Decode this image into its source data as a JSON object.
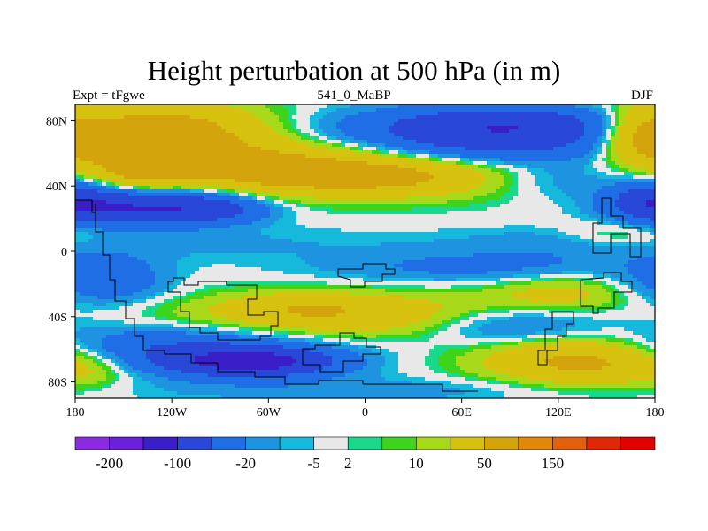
{
  "chart_data": {
    "type": "heatmap",
    "title": "Height perturbation at 500 hPa (in m)",
    "left_label": "Expt = tFgwe",
    "center_label": "541_0_MaBP",
    "right_label": "DJF",
    "x_ticks": [
      {
        "value": -180,
        "label": "180"
      },
      {
        "value": -120,
        "label": "120W"
      },
      {
        "value": -60,
        "label": "60W"
      },
      {
        "value": 0,
        "label": "0"
      },
      {
        "value": 60,
        "label": "60E"
      },
      {
        "value": 120,
        "label": "120E"
      },
      {
        "value": 180,
        "label": "180"
      }
    ],
    "y_ticks": [
      {
        "value": 80,
        "label": "80N"
      },
      {
        "value": 40,
        "label": "40N"
      },
      {
        "value": 0,
        "label": "0"
      },
      {
        "value": -40,
        "label": "40S"
      },
      {
        "value": -80,
        "label": "80S"
      }
    ],
    "xlim": [
      -180,
      180
    ],
    "ylim": [
      -90,
      90
    ],
    "colorbar": {
      "colors": [
        "#8a2be2",
        "#6a1fd8",
        "#3a1fc8",
        "#2a48d8",
        "#1f6ee6",
        "#1e93e0",
        "#16b9dc",
        "#e8e8e8",
        "#19d88c",
        "#3ed41c",
        "#a8d81a",
        "#d6c20e",
        "#d4a40c",
        "#e08808",
        "#e2600c",
        "#e02808",
        "#e20000"
      ],
      "labels": [
        {
          "boundary": 1,
          "text": "-200"
        },
        {
          "boundary": 3,
          "text": "-100"
        },
        {
          "boundary": 5,
          "text": "-20"
        },
        {
          "boundary": 7,
          "text": "-5"
        },
        {
          "boundary": 8,
          "text": "2"
        },
        {
          "boundary": 10,
          "text": "10"
        },
        {
          "boundary": 12,
          "text": "50"
        },
        {
          "boundary": 14,
          "text": "150"
        }
      ]
    },
    "field": [
      {
        "lon": -130,
        "lat": 72,
        "slon": 55,
        "slat": 13,
        "value": 80
      },
      {
        "lon": -140,
        "lat": 50,
        "slon": 20,
        "slat": 15,
        "value": 45
      },
      {
        "lon": -60,
        "lat": 52,
        "slon": 60,
        "slat": 11,
        "value": 40
      },
      {
        "lon": 20,
        "lat": 46,
        "slon": 75,
        "slat": 9,
        "value": 55
      },
      {
        "lon": 0,
        "lat": 66,
        "slon": 50,
        "slat": 10,
        "value": 30
      },
      {
        "lon": 172,
        "lat": 70,
        "slon": 18,
        "slat": 12,
        "value": 60
      },
      {
        "lon": 65,
        "lat": 70,
        "slon": 85,
        "slat": 11,
        "value": -90
      },
      {
        "lon": 95,
        "lat": 80,
        "slon": 45,
        "slat": 7,
        "value": -40
      },
      {
        "lon": 115,
        "lat": 44,
        "slon": 40,
        "slat": 8,
        "value": -30
      },
      {
        "lon": -150,
        "lat": 28,
        "slon": 35,
        "slat": 8,
        "value": -110
      },
      {
        "lon": -95,
        "lat": 26,
        "slon": 25,
        "slat": 6,
        "value": -60
      },
      {
        "lon": 175,
        "lat": 32,
        "slon": 15,
        "slat": 8,
        "value": -40
      },
      {
        "lon": -120,
        "lat": 5,
        "slon": 110,
        "slat": 8,
        "value": -12
      },
      {
        "lon": 110,
        "lat": 5,
        "slon": 55,
        "slat": 7,
        "value": -10
      },
      {
        "lon": 160,
        "lat": 10,
        "slon": 25,
        "slat": 6,
        "value": 20
      },
      {
        "lon": -160,
        "lat": -18,
        "slon": 25,
        "slat": 10,
        "value": -40
      },
      {
        "lon": -130,
        "lat": -60,
        "slon": 70,
        "slat": 10,
        "value": -55
      },
      {
        "lon": -70,
        "lat": -68,
        "slon": 35,
        "slat": 6,
        "value": -110
      },
      {
        "lon": 5,
        "lat": -40,
        "slon": 85,
        "slat": 10,
        "value": 45
      },
      {
        "lon": -40,
        "lat": -34,
        "slon": 30,
        "slat": 6,
        "value": 20
      },
      {
        "lon": 70,
        "lat": -10,
        "slon": 70,
        "slat": 7,
        "value": -25
      },
      {
        "lon": 90,
        "lat": -45,
        "slon": 45,
        "slat": 9,
        "value": -45
      },
      {
        "lon": 120,
        "lat": -25,
        "slon": 30,
        "slat": 8,
        "value": 25
      },
      {
        "lon": 140,
        "lat": -66,
        "slon": 45,
        "slat": 11,
        "value": 75
      },
      {
        "lon": -165,
        "lat": -70,
        "slon": 14,
        "slat": 8,
        "value": 10
      },
      {
        "lon": 0,
        "lat": -85,
        "slon": 120,
        "slat": 6,
        "value": -15
      }
    ]
  }
}
